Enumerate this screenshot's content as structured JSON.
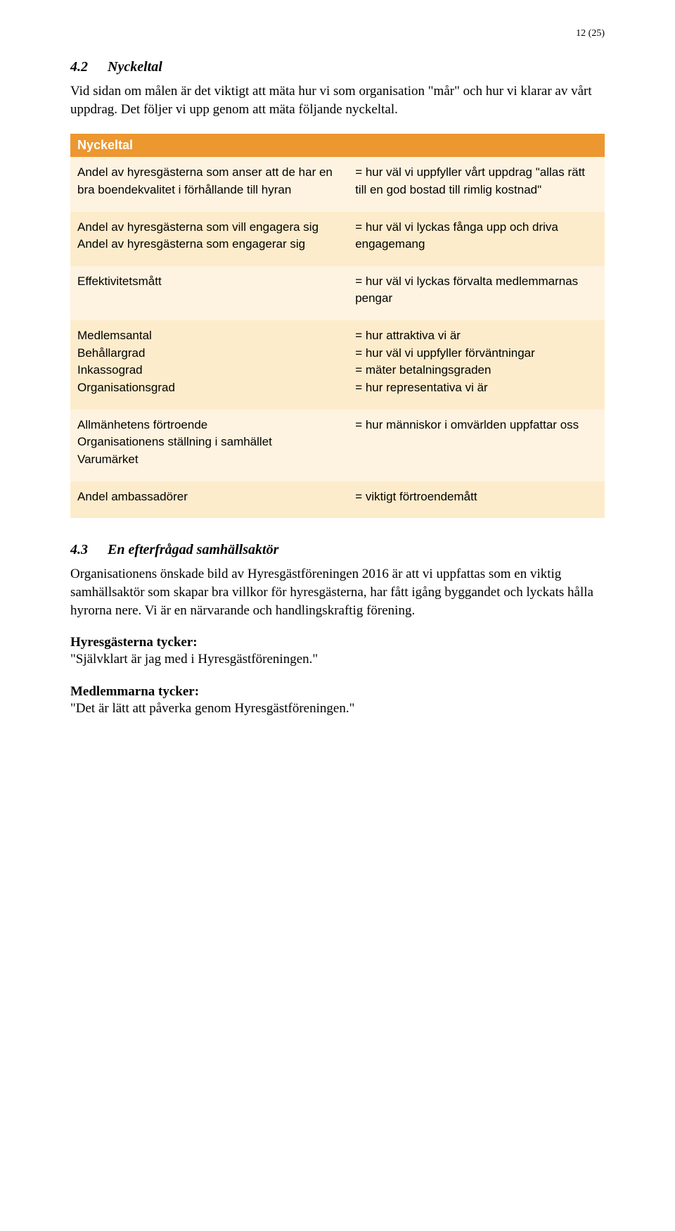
{
  "page_number": "12 (25)",
  "heading_4_2": {
    "num": "4.2",
    "title": "Nyckeltal"
  },
  "intro_4_2": "Vid sidan om målen är det viktigt att mäta hur vi som organisation \"mår\" och hur vi klarar av vårt uppdrag. Det följer vi upp genom att mäta följande nyckeltal.",
  "table_header": "Nyckeltal",
  "rows": [
    {
      "left": "Andel av hyresgästerna som anser att de har en bra boendekvalitet i förhållande till hyran",
      "right": "= hur väl vi uppfyller vårt uppdrag \"allas rätt till en god bostad till rimlig kostnad\""
    },
    {
      "left": "Andel av hyresgästerna som vill engagera sig\nAndel av hyresgästerna som engagerar sig",
      "right": "= hur väl vi lyckas fånga upp och driva engagemang"
    },
    {
      "left": "Effektivitetsmått",
      "right": "= hur väl vi lyckas förvalta medlemmarnas pengar"
    },
    {
      "left": "Medlemsantal\nBehållargrad\nInkassograd\nOrganisationsgrad",
      "right": "= hur attraktiva vi är\n= hur väl vi uppfyller förväntningar\n= mäter betalningsgraden\n= hur representativa vi är"
    },
    {
      "left": "Allmänhetens förtroende\nOrganisationens ställning i samhället\nVarumärket",
      "right": "= hur människor i omvärlden uppfattar oss"
    },
    {
      "left": "Andel ambassadörer",
      "right": "= viktigt förtroendemått"
    }
  ],
  "heading_4_3": {
    "num": "4.3",
    "title": "En efterfrågad samhällsaktör"
  },
  "para_4_3": "Organisationens önskade bild av Hyresgästföreningen 2016 är att vi uppfattas som en viktig samhällsaktör som skapar bra villkor för hyresgästerna, har fått igång byggandet och lyckats hålla hyrorna nere. Vi är en närvarande och handlingskraftig förening.",
  "sub1_heading": "Hyresgästerna tycker:",
  "sub1_quote": "\"Självklart är jag med i Hyresgästföreningen.\"",
  "sub2_heading": "Medlemmarna tycker:",
  "sub2_quote": "\"Det är lätt att påverka genom Hyresgästföreningen.\""
}
